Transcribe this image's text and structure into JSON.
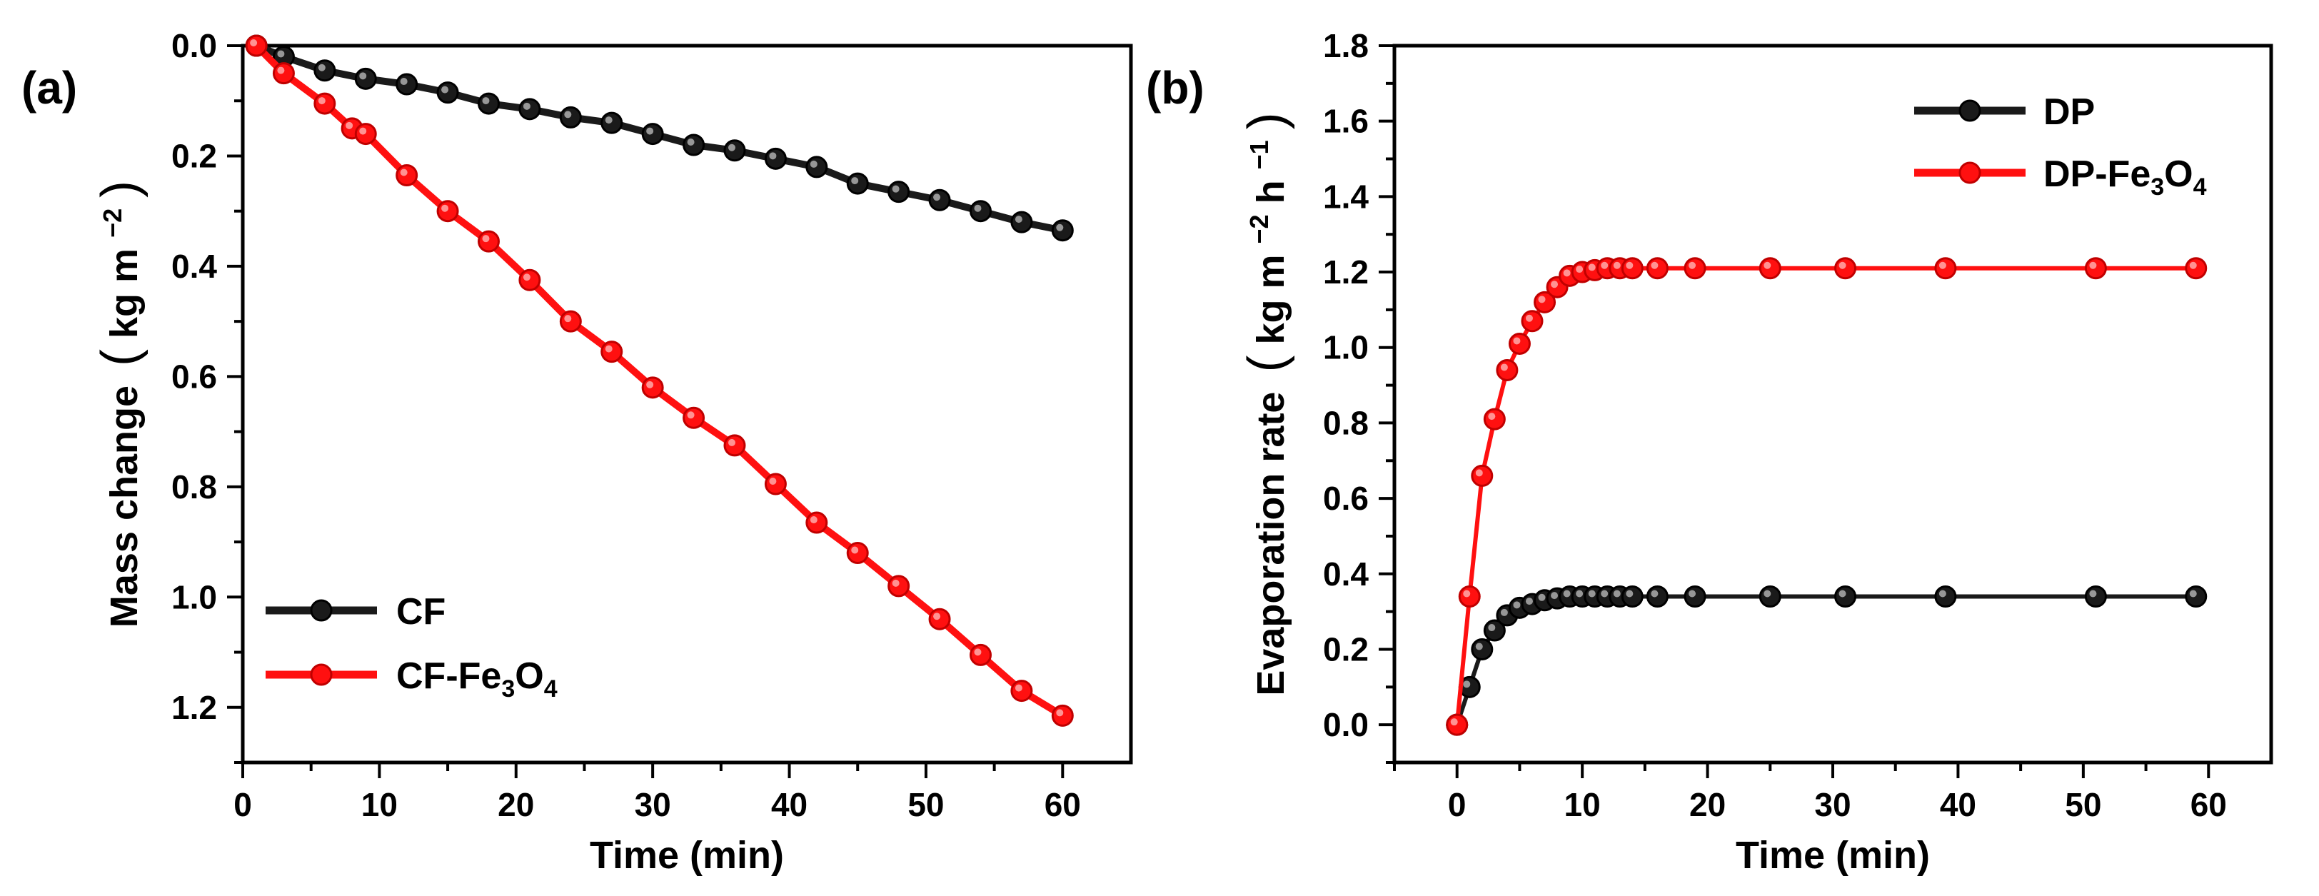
{
  "colors": {
    "series_black": "#1a1a1a",
    "series_red": "#ff1010"
  },
  "chart_data": [
    {
      "type": "line",
      "panel_label": "(a)",
      "xlabel": "Time (min)",
      "ylabel": {
        "text": "Mass change",
        "unit_open": "(",
        "unit_main": "kg m",
        "unit_sup": "−2",
        "unit_close": ")"
      },
      "xlim": [
        0,
        65
      ],
      "ylim": [
        0,
        1.3
      ],
      "y_inverted": true,
      "xticks": [
        "0",
        "10",
        "20",
        "30",
        "40",
        "50",
        "60"
      ],
      "yticks": [
        "0.0",
        "0.2",
        "0.4",
        "0.6",
        "0.8",
        "1.0",
        "1.2"
      ],
      "legend_position": "lower-left",
      "series": [
        {
          "name": "CF",
          "legend": {
            "main": "CF",
            "sub1": "",
            "mid": "",
            "sub2": ""
          },
          "color": "#1a1a1a",
          "x": [
            1,
            3,
            6,
            9,
            12,
            15,
            18,
            21,
            24,
            27,
            30,
            33,
            36,
            39,
            42,
            45,
            48,
            51,
            54,
            57,
            60
          ],
          "values": [
            0.0,
            0.02,
            0.045,
            0.06,
            0.07,
            0.085,
            0.105,
            0.115,
            0.13,
            0.14,
            0.16,
            0.18,
            0.19,
            0.205,
            0.22,
            0.25,
            0.265,
            0.28,
            0.3,
            0.32,
            0.335
          ]
        },
        {
          "name": "CF-Fe3O4",
          "legend": {
            "main": "CF-Fe",
            "sub1": "3",
            "mid": "O",
            "sub2": "4"
          },
          "color": "#ff1010",
          "x": [
            1,
            3,
            6,
            8,
            9,
            12,
            15,
            18,
            21,
            24,
            27,
            30,
            33,
            36,
            39,
            42,
            45,
            48,
            51,
            54,
            57,
            60
          ],
          "values": [
            0.0,
            0.05,
            0.105,
            0.15,
            0.16,
            0.235,
            0.3,
            0.355,
            0.425,
            0.5,
            0.555,
            0.62,
            0.675,
            0.725,
            0.795,
            0.865,
            0.92,
            0.98,
            1.04,
            1.105,
            1.17,
            1.215
          ]
        }
      ]
    },
    {
      "type": "line",
      "panel_label": "(b)",
      "xlabel": "Time (min)",
      "ylabel": {
        "text": "Evaporation rate",
        "unit_open": "(",
        "unit_main": "kg m",
        "unit_sup": "−2",
        "unit_mid": " h",
        "unit_sup2": "−1",
        "unit_close": ")"
      },
      "xlim": [
        -5,
        65
      ],
      "ylim": [
        -0.1,
        1.8
      ],
      "xticks": [
        "0",
        "10",
        "20",
        "30",
        "40",
        "50",
        "60"
      ],
      "yticks": [
        "0.0",
        "0.2",
        "0.4",
        "0.6",
        "0.8",
        "1.0",
        "1.2",
        "1.4",
        "1.6",
        "1.8"
      ],
      "legend_position": "top-right",
      "series": [
        {
          "name": "DP",
          "legend": {
            "main": "DP",
            "sub1": "",
            "mid": "",
            "sub2": ""
          },
          "color": "#1a1a1a",
          "x": [
            0,
            1,
            2,
            3,
            4,
            5,
            6,
            7,
            8,
            9,
            10,
            11,
            12,
            13,
            14,
            16,
            19,
            25,
            31,
            39,
            51,
            59
          ],
          "values": [
            0.0,
            0.1,
            0.2,
            0.25,
            0.29,
            0.31,
            0.32,
            0.33,
            0.335,
            0.34,
            0.34,
            0.34,
            0.34,
            0.34,
            0.34,
            0.34,
            0.34,
            0.34,
            0.34,
            0.34,
            0.34,
            0.34
          ]
        },
        {
          "name": "DP-Fe3O4",
          "legend": {
            "main": "DP-Fe",
            "sub1": "3",
            "mid": "O",
            "sub2": "4"
          },
          "color": "#ff1010",
          "x": [
            0,
            1,
            2,
            3,
            4,
            5,
            6,
            7,
            8,
            9,
            10,
            11,
            12,
            13,
            14,
            16,
            19,
            25,
            31,
            39,
            51,
            59
          ],
          "values": [
            0.0,
            0.34,
            0.66,
            0.81,
            0.94,
            1.01,
            1.07,
            1.12,
            1.16,
            1.19,
            1.2,
            1.205,
            1.21,
            1.21,
            1.21,
            1.21,
            1.21,
            1.21,
            1.21,
            1.21,
            1.21,
            1.21
          ]
        }
      ]
    }
  ]
}
